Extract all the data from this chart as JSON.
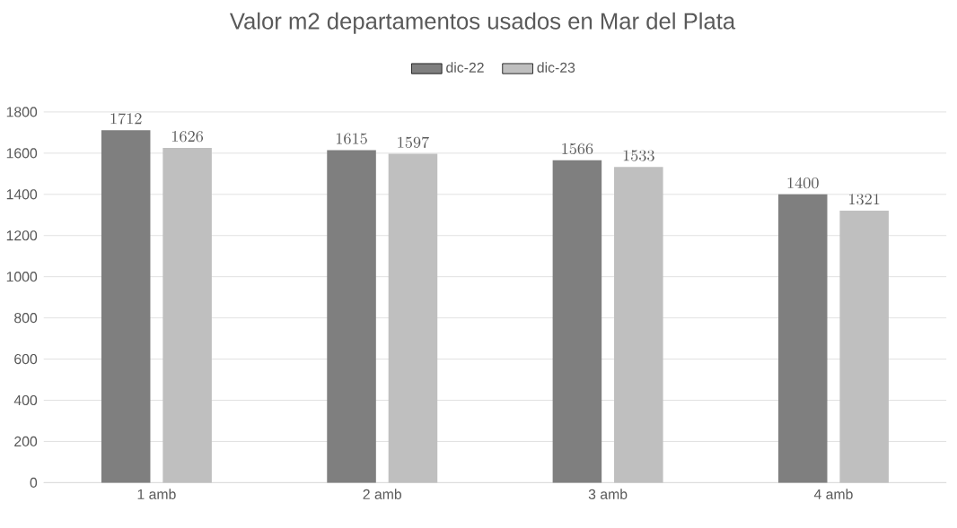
{
  "chart_data": {
    "type": "bar",
    "title": "Valor m2 departamentos usados en Mar del Plata",
    "categories": [
      "1 amb",
      "2 amb",
      "3 amb",
      "4 amb"
    ],
    "series": [
      {
        "name": "dic-22",
        "color": "#7f7f7f",
        "values": [
          1712,
          1615,
          1566,
          1400
        ]
      },
      {
        "name": "dic-23",
        "color": "#bfbfbf",
        "values": [
          1626,
          1597,
          1533,
          1321
        ]
      }
    ],
    "ylim": [
      0,
      1800
    ],
    "yticks": [
      0,
      200,
      400,
      600,
      800,
      1000,
      1200,
      1400,
      1600,
      1800
    ],
    "grid": "y",
    "legend": "top",
    "data_labels": true
  }
}
